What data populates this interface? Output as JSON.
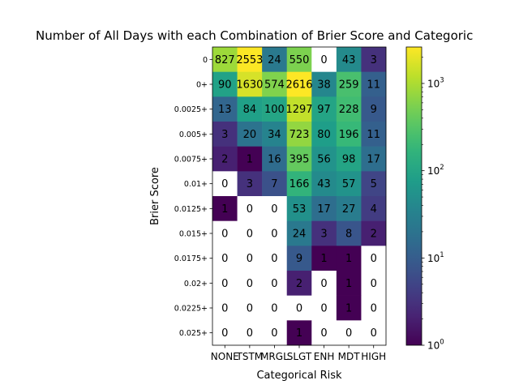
{
  "chart_data": {
    "type": "heatmap",
    "title": "Number of All Days with each Combination of Brier Score and Categoric",
    "xlabel": "Categorical Risk",
    "ylabel": "Brier Score",
    "x_categories": [
      "NONE",
      "TSTM",
      "MRGL",
      "SLGT",
      "ENH",
      "MDT",
      "HIGH"
    ],
    "y_categories": [
      "0",
      "0+",
      "0.0025+",
      "0.005+",
      "0.0075+",
      "0.01+",
      "0.0125+",
      "0.015+",
      "0.0175+",
      "0.02+",
      "0.0225+",
      "0.025+"
    ],
    "values": [
      [
        827,
        2553,
        24,
        550,
        0,
        43,
        3
      ],
      [
        90,
        1630,
        574,
        2616,
        38,
        259,
        11
      ],
      [
        13,
        84,
        100,
        1297,
        97,
        228,
        9
      ],
      [
        3,
        20,
        34,
        723,
        80,
        196,
        11
      ],
      [
        2,
        1,
        16,
        395,
        56,
        98,
        17
      ],
      [
        0,
        3,
        7,
        166,
        43,
        57,
        5
      ],
      [
        1,
        0,
        0,
        53,
        17,
        27,
        4
      ],
      [
        0,
        0,
        0,
        24,
        3,
        8,
        2
      ],
      [
        0,
        0,
        0,
        9,
        1,
        1,
        0
      ],
      [
        0,
        0,
        0,
        2,
        0,
        1,
        0
      ],
      [
        0,
        0,
        0,
        0,
        0,
        1,
        0
      ],
      [
        0,
        0,
        0,
        1,
        0,
        0,
        0
      ]
    ],
    "colorscale": "viridis",
    "color_scale_type": "log",
    "zero_color": "#ffffff",
    "colorbar": {
      "range": [
        1,
        2616
      ],
      "tick_bases": [
        "10",
        "10",
        "10",
        "10"
      ],
      "tick_exponents": [
        "0",
        "1",
        "2",
        "3"
      ],
      "tick_values": [
        1,
        10,
        100,
        1000
      ]
    }
  }
}
